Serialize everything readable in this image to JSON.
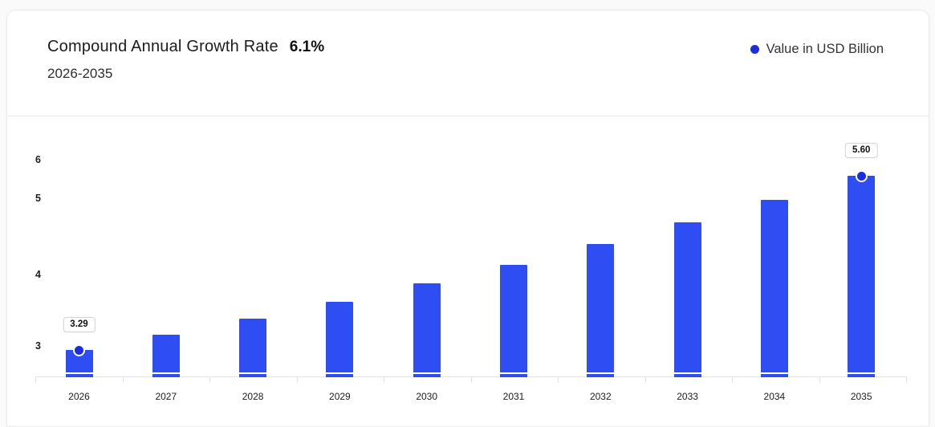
{
  "header": {
    "title": "Compound Annual Growth Rate",
    "cagr_value": "6.1%",
    "subtitle": "2026-2035",
    "legend": {
      "label": "Value in USD Billion",
      "dot_color": "#1a2de0"
    }
  },
  "chart_data": {
    "type": "bar",
    "title": "Compound Annual Growth Rate 6.1%",
    "subtitle": "2026-2035",
    "categories": [
      "2026",
      "2027",
      "2028",
      "2029",
      "2030",
      "2031",
      "2032",
      "2033",
      "2034",
      "2035"
    ],
    "series": [
      {
        "name": "Value in USD Billion",
        "values": [
          3.29,
          3.49,
          3.7,
          3.93,
          4.17,
          4.42,
          4.69,
          4.98,
          5.28,
          5.6
        ]
      }
    ],
    "y_ticks": [
      6,
      5,
      4,
      3
    ],
    "ylim": [
      2.93,
      6
    ],
    "grid": false,
    "legend_position": "top-right",
    "bar_color": "#2e4df3",
    "marker_color": "#1a2de0",
    "annotations": [
      {
        "index": 0,
        "label": "3.29"
      },
      {
        "index": 9,
        "label": "5.60"
      }
    ]
  }
}
